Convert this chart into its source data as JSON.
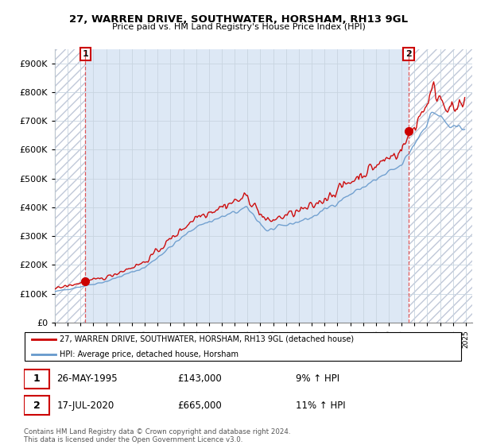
{
  "title": "27, WARREN DRIVE, SOUTHWATER, HORSHAM, RH13 9GL",
  "subtitle": "Price paid vs. HM Land Registry's House Price Index (HPI)",
  "ylim": [
    0,
    950000
  ],
  "yticks": [
    0,
    100000,
    200000,
    300000,
    400000,
    500000,
    600000,
    700000,
    800000,
    900000
  ],
  "ytick_labels": [
    "£0",
    "£100K",
    "£200K",
    "£300K",
    "£400K",
    "£500K",
    "£600K",
    "£700K",
    "£800K",
    "£900K"
  ],
  "xmin": 1993,
  "xmax": 2025.5,
  "sale1_year": 1995.38,
  "sale1_price": 143000,
  "sale2_year": 2020.54,
  "sale2_price": 665000,
  "legend_line1": "27, WARREN DRIVE, SOUTHWATER, HORSHAM, RH13 9GL (detached house)",
  "legend_line2": "HPI: Average price, detached house, Horsham",
  "fn1_num": "1",
  "fn1_date": "26-MAY-1995",
  "fn1_price": "£143,000",
  "fn1_hpi": "9% ↑ HPI",
  "fn2_num": "2",
  "fn2_date": "17-JUL-2020",
  "fn2_price": "£665,000",
  "fn2_hpi": "11% ↑ HPI",
  "copyright": "Contains HM Land Registry data © Crown copyright and database right 2024.\nThis data is licensed under the Open Government Licence v3.0.",
  "price_color": "#cc0000",
  "hpi_color": "#6699cc",
  "hpi_fill_color": "#dde8f5",
  "hatch_color": "#c0c8d8",
  "grid_color": "#c8d4e0"
}
